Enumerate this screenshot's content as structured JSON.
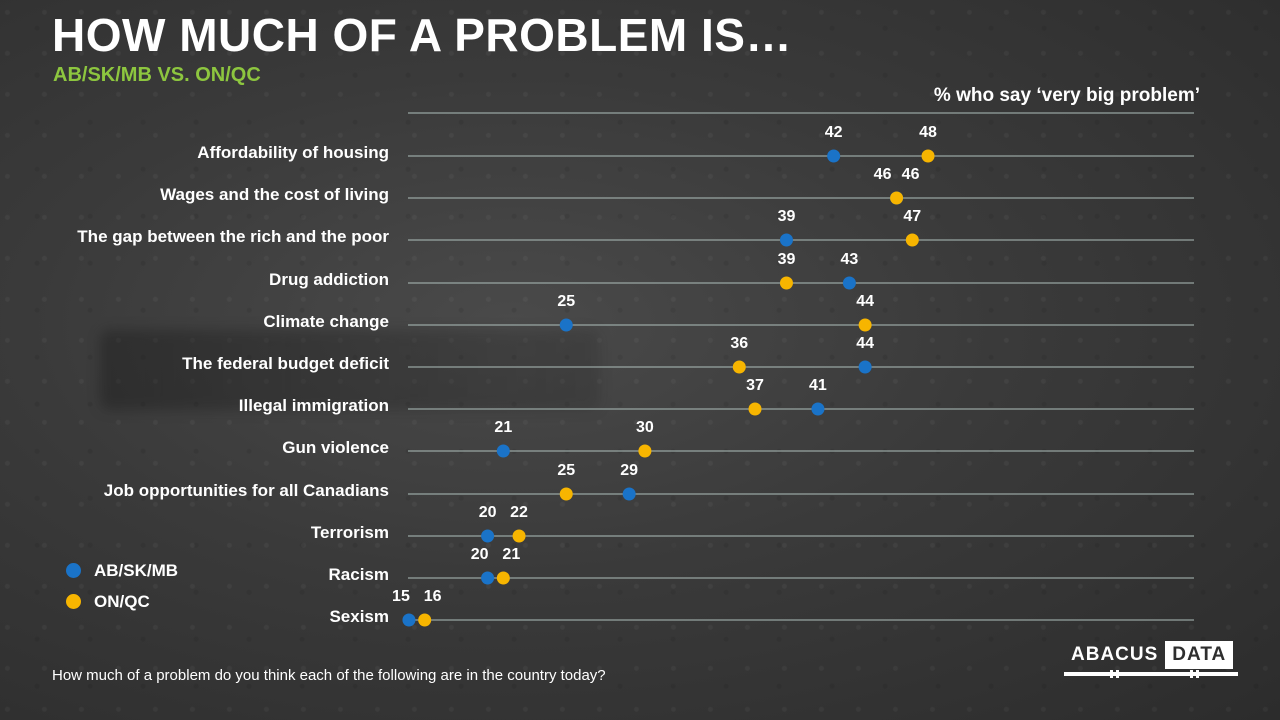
{
  "title": "HOW MUCH OF A PROBLEM IS…",
  "subtitle": "AB/SK/MB VS. ON/QC",
  "measure_label": "% who say ‘very big problem’",
  "footnote": "How much of a problem do you think each of the following are in the country today?",
  "logo": {
    "word1": "ABACUS",
    "word2": "DATA"
  },
  "colors": {
    "series1": "#1a73c8",
    "series2": "#f7b500",
    "line": "#aebfbb",
    "subtitle": "#8dc63f"
  },
  "legend": [
    {
      "label": "AB/SK/MB",
      "color": "#1a73c8"
    },
    {
      "label": "ON/QC",
      "color": "#f7b500"
    }
  ],
  "chart_data": {
    "type": "dot",
    "categories": [
      "Affordability of housing",
      "Wages and the cost of living",
      "The gap between the rich and the poor",
      "Drug addiction",
      "Climate change",
      "The federal budget deficit",
      "Illegal immigration",
      "Gun violence",
      "Job opportunities for all Canadians",
      "Terrorism",
      "Racism",
      "Sexism"
    ],
    "series": [
      {
        "name": "AB/SK/MB",
        "color": "#1a73c8",
        "values": [
          42,
          46,
          39,
          43,
          25,
          44,
          41,
          21,
          29,
          20,
          20,
          15
        ]
      },
      {
        "name": "ON/QC",
        "color": "#f7b500",
        "values": [
          48,
          46,
          47,
          39,
          44,
          36,
          37,
          30,
          25,
          22,
          21,
          16
        ]
      }
    ],
    "xlim": [
      0,
      50
    ],
    "grid": true,
    "legend_position": "bottom-left"
  }
}
